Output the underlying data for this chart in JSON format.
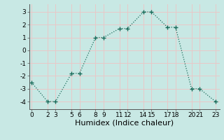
{
  "x": [
    0,
    2,
    3,
    5,
    6,
    8,
    9,
    11,
    12,
    14,
    15,
    17,
    18,
    20,
    21,
    23
  ],
  "y": [
    -2.5,
    -4.0,
    -4.0,
    -1.8,
    -1.8,
    1.0,
    1.0,
    1.7,
    1.7,
    3.0,
    3.0,
    1.8,
    1.8,
    -3.0,
    -3.0,
    -4.0
  ],
  "line_color": "#1a6b5a",
  "bg_color": "#c8e8e4",
  "grid_color": "#e8c8c8",
  "xlabel": "Humidex (Indice chaleur)",
  "xticks": [
    0,
    2,
    3,
    5,
    6,
    8,
    9,
    11,
    12,
    14,
    15,
    17,
    18,
    20,
    21,
    23
  ],
  "yticks": [
    -4,
    -3,
    -2,
    -1,
    0,
    1,
    2,
    3
  ],
  "xlim": [
    -0.3,
    23.5
  ],
  "ylim": [
    -4.6,
    3.6
  ],
  "tick_fontsize": 6.5,
  "label_fontsize": 8.0
}
